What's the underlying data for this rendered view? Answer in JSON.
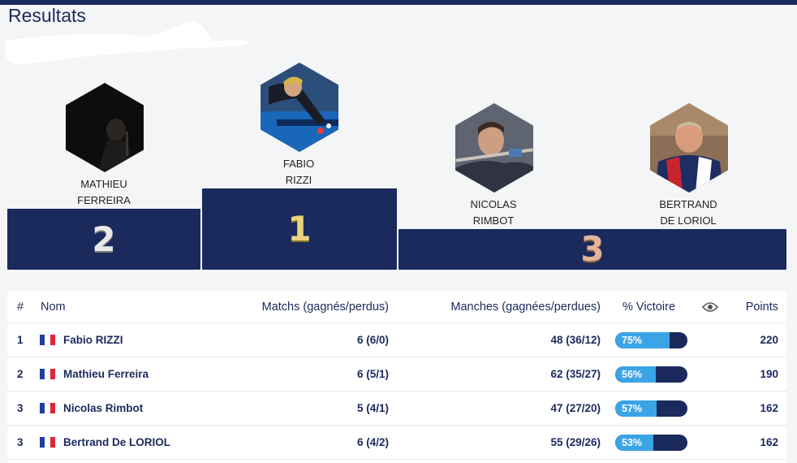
{
  "page_title": "Resultats",
  "podium": [
    {
      "rank": "2",
      "first_name": "MATHIEU",
      "last_name": "FERREIRA"
    },
    {
      "rank": "1",
      "first_name": "FABIO",
      "last_name": "RIZZI"
    },
    {
      "rank": "3",
      "first_name": "NICOLAS",
      "last_name": "RIMBOT"
    },
    {
      "rank": "3",
      "first_name": "BERTRAND",
      "last_name": "DE LORIOL"
    }
  ],
  "table": {
    "headers": {
      "rank": "#",
      "name": "Nom",
      "matchs": "Matchs (gagnés/perdus)",
      "manches": "Manches (gagnées/perdues)",
      "pct": "% Victoire",
      "eye_icon": "eye-icon",
      "points": "Points"
    },
    "rows": [
      {
        "rank": "1",
        "name": "Fabio RIZZI",
        "matchs": "6 (6/0)",
        "manches": "48 (36/12)",
        "pct": "75%",
        "pct_value": 75,
        "points": "220"
      },
      {
        "rank": "2",
        "name": "Mathieu Ferreira",
        "matchs": "6 (5/1)",
        "manches": "62 (35/27)",
        "pct": "56%",
        "pct_value": 56,
        "points": "190"
      },
      {
        "rank": "3",
        "name": "Nicolas Rimbot",
        "matchs": "5 (4/1)",
        "manches": "47 (27/20)",
        "pct": "57%",
        "pct_value": 57,
        "points": "162"
      },
      {
        "rank": "3",
        "name": "Bertrand De LORIOL",
        "matchs": "6 (4/2)",
        "manches": "55 (29/26)",
        "pct": "53%",
        "pct_value": 53,
        "points": "162"
      }
    ]
  },
  "colors": {
    "navy": "#1b2a5c",
    "bar_fill": "#3aa4e6",
    "flag_blue": "#1f3f9c",
    "flag_red": "#e0243a"
  }
}
